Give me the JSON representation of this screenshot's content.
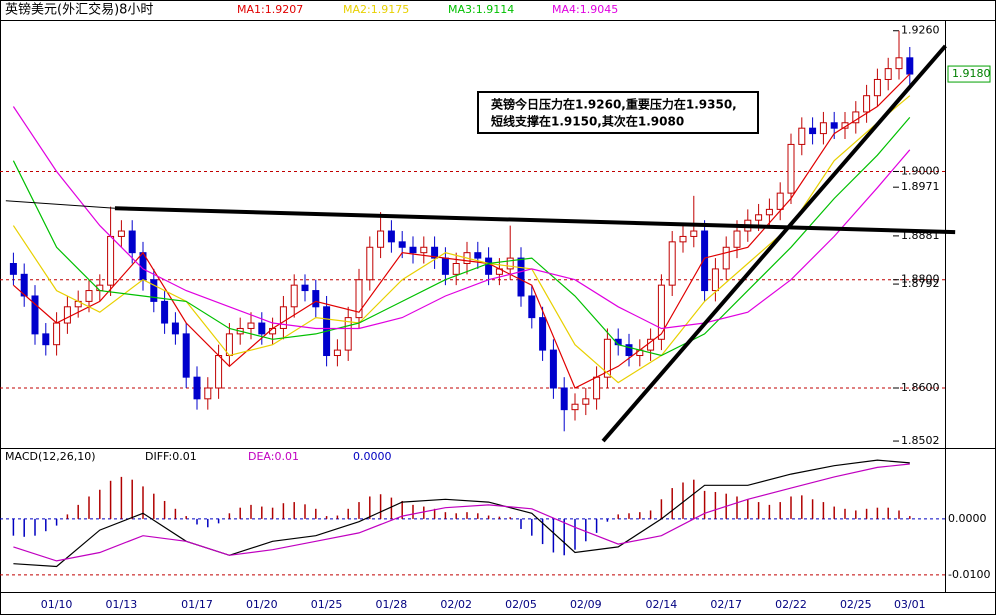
{
  "chart_data": [
    {
      "type": "candlestick",
      "title": "英镑美元(外汇交易)8小时",
      "ylim": [
        1.8491,
        1.9278
      ],
      "yticks": [
        {
          "value": 1.926,
          "label": "1.9260"
        },
        {
          "value": 1.9,
          "label": "1.9000",
          "dashed": true
        },
        1.8971,
        1.8881,
        {
          "value": 1.88,
          "label": "1.8800",
          "dashed": true
        },
        1.8792,
        {
          "value": 1.86,
          "label": "1.8600",
          "dashed": true
        },
        1.8502
      ],
      "last_price": {
        "value": 1.918,
        "label": "1.9180"
      },
      "up_color": "#c00000",
      "down_color": "#0000cc",
      "open": [
        1.883,
        1.881,
        1.877,
        1.87,
        1.868,
        1.872,
        1.875,
        1.876,
        1.878,
        1.879,
        1.888,
        1.889,
        1.885,
        1.88,
        1.876,
        1.872,
        1.87,
        1.862,
        1.858,
        1.86,
        1.866,
        1.87,
        1.871,
        1.872,
        1.87,
        1.871,
        1.875,
        1.879,
        1.878,
        1.875,
        1.866,
        1.867,
        1.873,
        1.88,
        1.886,
        1.889,
        1.887,
        1.886,
        1.885,
        1.886,
        1.884,
        1.881,
        1.883,
        1.885,
        1.884,
        1.881,
        1.882,
        1.884,
        1.877,
        1.873,
        1.867,
        1.86,
        1.856,
        1.857,
        1.858,
        1.862,
        1.869,
        1.868,
        1.866,
        1.867,
        1.869,
        1.879,
        1.887,
        1.888,
        1.889,
        1.878,
        1.882,
        1.886,
        1.889,
        1.891,
        1.892,
        1.893,
        1.896,
        1.905,
        1.908,
        1.907,
        1.909,
        1.908,
        1.909,
        1.911,
        1.914,
        1.917,
        1.919,
        1.921
      ],
      "high": [
        1.885,
        1.883,
        1.879,
        1.872,
        1.874,
        1.877,
        1.878,
        1.88,
        1.881,
        1.8935,
        1.891,
        1.891,
        1.887,
        1.882,
        1.878,
        1.874,
        1.872,
        1.864,
        1.862,
        1.868,
        1.872,
        1.873,
        1.874,
        1.874,
        1.873,
        1.877,
        1.881,
        1.881,
        1.88,
        1.877,
        1.869,
        1.875,
        1.882,
        1.888,
        1.8925,
        1.891,
        1.889,
        1.888,
        1.888,
        1.888,
        1.886,
        1.885,
        1.887,
        1.887,
        1.886,
        1.884,
        1.89,
        1.886,
        1.879,
        1.875,
        1.869,
        1.862,
        1.859,
        1.86,
        1.864,
        1.871,
        1.871,
        1.87,
        1.869,
        1.871,
        1.881,
        1.889,
        1.89,
        1.8955,
        1.891,
        1.884,
        1.888,
        1.891,
        1.893,
        1.894,
        1.895,
        1.898,
        1.907,
        1.91,
        1.91,
        1.911,
        1.911,
        1.911,
        1.913,
        1.916,
        1.919,
        1.921,
        1.926,
        1.923
      ],
      "low": [
        1.879,
        1.875,
        1.868,
        1.866,
        1.866,
        1.87,
        1.873,
        1.874,
        1.876,
        1.877,
        1.886,
        1.883,
        1.878,
        1.874,
        1.87,
        1.868,
        1.86,
        1.856,
        1.856,
        1.858,
        1.864,
        1.868,
        1.869,
        1.868,
        1.868,
        1.869,
        1.873,
        1.876,
        1.873,
        1.864,
        1.864,
        1.865,
        1.871,
        1.878,
        1.884,
        1.885,
        1.884,
        1.883,
        1.883,
        1.882,
        1.879,
        1.879,
        1.881,
        1.882,
        1.879,
        1.879,
        1.88,
        1.875,
        1.871,
        1.865,
        1.858,
        1.852,
        1.854,
        1.855,
        1.856,
        1.86,
        1.866,
        1.864,
        1.864,
        1.865,
        1.867,
        1.877,
        1.885,
        1.886,
        1.876,
        1.876,
        1.88,
        1.884,
        1.887,
        1.889,
        1.89,
        1.891,
        1.894,
        1.903,
        1.905,
        1.905,
        1.906,
        1.906,
        1.907,
        1.909,
        1.912,
        1.915,
        1.917,
        1.916
      ],
      "close": [
        1.881,
        1.877,
        1.87,
        1.868,
        1.872,
        1.875,
        1.876,
        1.878,
        1.879,
        1.888,
        1.889,
        1.885,
        1.88,
        1.876,
        1.872,
        1.87,
        1.862,
        1.858,
        1.86,
        1.866,
        1.87,
        1.871,
        1.872,
        1.87,
        1.871,
        1.875,
        1.879,
        1.878,
        1.875,
        1.866,
        1.867,
        1.873,
        1.88,
        1.886,
        1.889,
        1.887,
        1.886,
        1.885,
        1.886,
        1.884,
        1.881,
        1.883,
        1.885,
        1.884,
        1.881,
        1.882,
        1.884,
        1.877,
        1.873,
        1.867,
        1.86,
        1.856,
        1.857,
        1.858,
        1.862,
        1.869,
        1.868,
        1.866,
        1.867,
        1.869,
        1.879,
        1.887,
        1.888,
        1.889,
        1.878,
        1.882,
        1.886,
        1.889,
        1.891,
        1.892,
        1.893,
        1.896,
        1.905,
        1.908,
        1.907,
        1.909,
        1.908,
        1.909,
        1.911,
        1.914,
        1.917,
        1.919,
        1.921,
        1.918
      ],
      "series": [
        {
          "name": "MA1:1.9207",
          "color": "#e00000",
          "x": [
            0,
            4,
            8,
            12,
            16,
            20,
            24,
            28,
            32,
            36,
            40,
            44,
            48,
            52,
            56,
            60,
            64,
            68,
            72,
            76,
            80,
            83
          ],
          "values": [
            1.879,
            1.872,
            1.876,
            1.885,
            1.872,
            1.864,
            1.871,
            1.876,
            1.874,
            1.885,
            1.884,
            1.883,
            1.879,
            1.86,
            1.864,
            1.87,
            1.884,
            1.886,
            1.895,
            1.907,
            1.912,
            1.918
          ]
        },
        {
          "name": "MA2:1.9175",
          "color": "#e8d000",
          "x": [
            0,
            4,
            8,
            12,
            16,
            20,
            24,
            28,
            32,
            36,
            40,
            44,
            48,
            52,
            56,
            60,
            64,
            68,
            72,
            76,
            80,
            83
          ],
          "values": [
            1.89,
            1.878,
            1.874,
            1.88,
            1.876,
            1.866,
            1.868,
            1.873,
            1.872,
            1.88,
            1.885,
            1.883,
            1.882,
            1.868,
            1.861,
            1.866,
            1.876,
            1.883,
            1.89,
            1.902,
            1.909,
            1.914
          ]
        },
        {
          "name": "MA3:1.9114",
          "color": "#00c000",
          "x": [
            0,
            4,
            8,
            12,
            16,
            20,
            24,
            28,
            32,
            36,
            40,
            44,
            48,
            52,
            56,
            60,
            64,
            68,
            72,
            76,
            80,
            83
          ],
          "values": [
            1.902,
            1.886,
            1.878,
            1.877,
            1.876,
            1.871,
            1.869,
            1.87,
            1.872,
            1.876,
            1.88,
            1.883,
            1.884,
            1.877,
            1.868,
            1.866,
            1.87,
            1.878,
            1.886,
            1.895,
            1.903,
            1.91
          ]
        },
        {
          "name": "MA4:1.9045",
          "color": "#e000e0",
          "x": [
            0,
            4,
            8,
            12,
            16,
            20,
            24,
            28,
            32,
            36,
            40,
            44,
            48,
            52,
            56,
            60,
            64,
            68,
            72,
            76,
            80,
            83
          ],
          "values": [
            1.912,
            1.9,
            1.89,
            1.882,
            1.878,
            1.875,
            1.872,
            1.871,
            1.871,
            1.873,
            1.877,
            1.88,
            1.882,
            1.88,
            1.875,
            1.871,
            1.872,
            1.874,
            1.88,
            1.888,
            1.897,
            1.904
          ]
        }
      ],
      "trendlines": [
        {
          "x": [
            -0.7,
            9.4
          ],
          "y": [
            1.8946,
            1.8932
          ]
        },
        {
          "x": [
            9.4,
            87.2
          ],
          "y": [
            1.8932,
            1.8888
          ]
        },
        {
          "x": [
            54.6,
            86.3
          ],
          "y": [
            1.8502,
            1.9232
          ]
        }
      ],
      "annotation": [
        "英镑今日压力在1.9260,重要压力在1.9350,",
        "短线支撑在1.9150,其次在1.9080"
      ]
    },
    {
      "type": "macd",
      "title": "MACD(12,26,10)",
      "ylim": [
        -0.0127,
        0.0123
      ],
      "yticks": [
        {
          "value": 0,
          "label": "0.0000"
        },
        {
          "value": -0.01,
          "label": "-0.0100"
        }
      ],
      "categories": [
        null,
        null,
        null,
        null,
        "01/10",
        null,
        null,
        null,
        null,
        null,
        "01/13",
        null,
        null,
        null,
        null,
        null,
        null,
        "01/17",
        null,
        null,
        null,
        null,
        null,
        "01/20",
        null,
        null,
        null,
        null,
        null,
        "01/25",
        null,
        null,
        null,
        null,
        null,
        "01/28",
        null,
        null,
        null,
        null,
        null,
        "02/02",
        null,
        null,
        null,
        null,
        null,
        "02/05",
        null,
        null,
        null,
        null,
        null,
        "02/09",
        null,
        null,
        null,
        null,
        null,
        null,
        "02/14",
        null,
        null,
        null,
        null,
        null,
        "02/17",
        null,
        null,
        null,
        null,
        null,
        "02/22",
        null,
        null,
        null,
        null,
        null,
        "02/25",
        null,
        null,
        null,
        null,
        "03/01"
      ],
      "histogram": {
        "name": "0.0000",
        "color_up": "#b00000",
        "color_down": "#0000c0",
        "values": [
          -0.003,
          -0.0032,
          -0.003,
          -0.0022,
          -0.0012,
          0.0008,
          0.0025,
          0.004,
          0.0052,
          0.0068,
          0.0075,
          0.007,
          0.0058,
          0.0045,
          0.0032,
          0.0018,
          0.0005,
          -0.001,
          -0.0015,
          -0.0008,
          0.001,
          0.002,
          0.0025,
          0.0022,
          0.002,
          0.0028,
          0.003,
          0.0026,
          0.0018,
          0.0005,
          0.0006,
          0.0018,
          0.003,
          0.004,
          0.0044,
          0.0038,
          0.0032,
          0.0025,
          0.0022,
          0.0018,
          0.0012,
          0.001,
          0.0012,
          0.001,
          0.0006,
          0.0004,
          0.0003,
          -0.0018,
          -0.003,
          -0.0045,
          -0.006,
          -0.0065,
          -0.0055,
          -0.004,
          -0.0025,
          -0.0005,
          0.0008,
          0.001,
          0.0012,
          0.0015,
          0.0035,
          0.0055,
          0.0065,
          0.007,
          0.005,
          0.0048,
          0.0045,
          0.004,
          0.0035,
          0.003,
          0.0025,
          0.003,
          0.004,
          0.0042,
          0.0035,
          0.003,
          0.0022,
          0.0018,
          0.0015,
          0.0018,
          0.002,
          0.002,
          0.0015,
          0.0005
        ]
      },
      "series": [
        {
          "name": "DIFF:0.01",
          "color": "#000000",
          "x": [
            0,
            4,
            8,
            12,
            16,
            20,
            24,
            28,
            32,
            36,
            40,
            44,
            48,
            52,
            56,
            60,
            64,
            68,
            72,
            76,
            80,
            83
          ],
          "values": [
            -0.008,
            -0.0085,
            -0.002,
            0.001,
            -0.004,
            -0.0065,
            -0.004,
            -0.003,
            -0.0005,
            0.003,
            0.0035,
            0.003,
            0.001,
            -0.006,
            -0.005,
            0.0,
            0.006,
            0.006,
            0.008,
            0.0095,
            0.0105,
            0.01
          ]
        },
        {
          "name": "DEA:0.01",
          "color": "#c000c0",
          "x": [
            0,
            4,
            8,
            12,
            16,
            20,
            24,
            28,
            32,
            36,
            40,
            44,
            48,
            52,
            56,
            60,
            64,
            68,
            72,
            76,
            80,
            83
          ],
          "values": [
            -0.005,
            -0.0075,
            -0.006,
            -0.003,
            -0.004,
            -0.0065,
            -0.0055,
            -0.004,
            -0.0025,
            0.0005,
            0.002,
            0.0025,
            0.0018,
            -0.0015,
            -0.0045,
            -0.003,
            0.001,
            0.0035,
            0.0055,
            0.0075,
            0.0092,
            0.0098
          ]
        }
      ]
    }
  ]
}
